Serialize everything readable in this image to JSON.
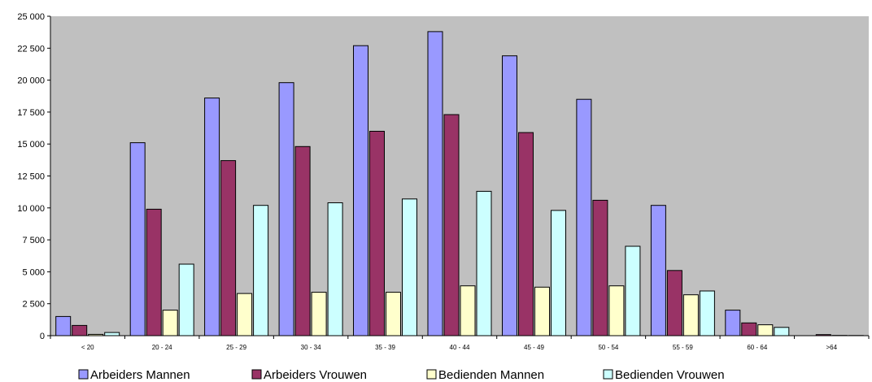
{
  "chart_data": {
    "type": "bar",
    "categories": [
      "< 20",
      "20 - 24",
      "25 - 29",
      "30 - 34",
      "35 - 39",
      "40 - 44",
      "45 - 49",
      "50 - 54",
      "55 - 59",
      "60 - 64",
      ">64"
    ],
    "series": [
      {
        "name": "Arbeiders Mannen",
        "color": "#9999ff",
        "values": [
          1500,
          15100,
          18600,
          19800,
          22700,
          23800,
          21900,
          18500,
          10200,
          2000,
          0
        ]
      },
      {
        "name": "Arbeiders Vrouwen",
        "color": "#993366",
        "values": [
          800,
          9900,
          13700,
          14800,
          16000,
          17300,
          15900,
          10600,
          5100,
          1000,
          80
        ]
      },
      {
        "name": "Bedienden Mannen",
        "color": "#ffffcc",
        "values": [
          100,
          2000,
          3300,
          3400,
          3400,
          3900,
          3800,
          3900,
          3200,
          850,
          20
        ]
      },
      {
        "name": "Bedienden Vrouwen",
        "color": "#ccffff",
        "values": [
          250,
          5600,
          10200,
          10400,
          10700,
          11300,
          9800,
          7000,
          3500,
          650,
          10
        ]
      }
    ],
    "yticks": [
      "0",
      "2 500",
      "5 000",
      "7 500",
      "10 000",
      "12 500",
      "15 000",
      "17 500",
      "20 000",
      "22 500",
      "25 000"
    ],
    "ylim": [
      0,
      25000
    ],
    "plot_background": "#c0c0c0",
    "grid": false,
    "legend_position": "bottom",
    "title": "",
    "xlabel": "",
    "ylabel": ""
  }
}
